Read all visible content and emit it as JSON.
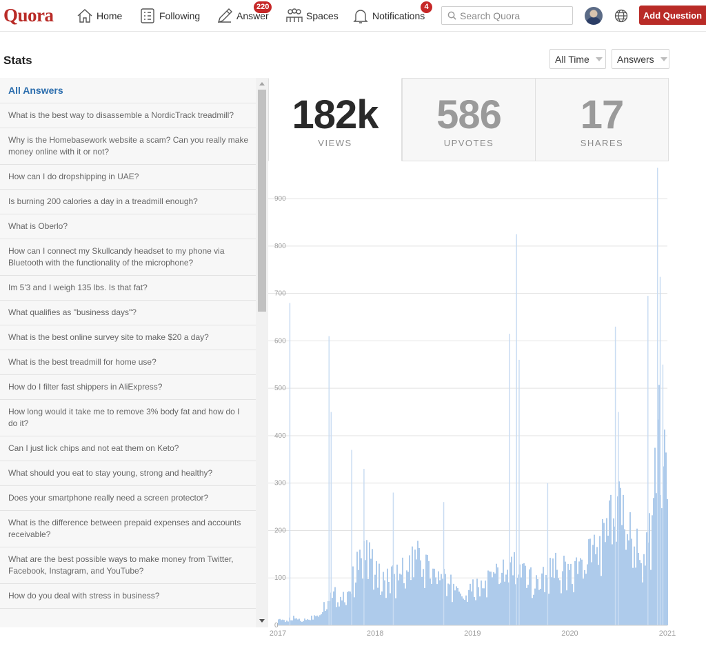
{
  "nav": {
    "logo": "Quora",
    "home": "Home",
    "following": "Following",
    "answer": "Answer",
    "answer_badge": "220",
    "spaces": "Spaces",
    "notifications": "Notifications",
    "notifications_badge": "4",
    "search_placeholder": "Search Quora",
    "add_question": "Add Question"
  },
  "page": {
    "title": "Stats",
    "time_filter": "All Time",
    "type_filter": "Answers"
  },
  "answers": {
    "header": "All Answers",
    "items": [
      "What is the best way to disassemble a NordicTrack treadmill?",
      "Why is the Homebasework website a scam? Can you really make money online with it or not?",
      "How can I do dropshipping in UAE?",
      "Is burning 200 calories a day in a treadmill enough?",
      "What is Oberlo?",
      "How can I connect my Skullcandy headset to my phone via Bluetooth with the functionality of the microphone?",
      "Im 5'3 and I weigh 135 lbs. Is that fat?",
      "What qualifies as \"business days\"?",
      "What is the best online survey site to make $20 a day?",
      "What is the best treadmill for home use?",
      "How do I filter fast shippers in AliExpress?",
      "How long would it take me to remove 3% body fat and how do I do it?",
      "Can I just lick chips and not eat them on Keto?",
      "What should you eat to stay young, strong and healthy?",
      "Does your smartphone really need a screen protector?",
      "What is the difference between prepaid expenses and accounts receivable?",
      "What are the best possible ways to make money from Twitter, Facebook, Instagram, and YouTube?",
      "How do you deal with stress in business?"
    ]
  },
  "stats": {
    "views": {
      "value": "182k",
      "label": "VIEWS"
    },
    "upvotes": {
      "value": "586",
      "label": "UPVOTES"
    },
    "shares": {
      "value": "17",
      "label": "SHARES"
    }
  },
  "colors": {
    "brand": "#b92b27",
    "link": "#2b6dad",
    "bar_fill": "#aecbeb",
    "spike": "#c9dcf2"
  },
  "chart_data": {
    "type": "area",
    "title": "",
    "xlabel": "",
    "ylabel": "",
    "x_ticks": [
      "2017",
      "2018",
      "2019",
      "2020",
      "2021"
    ],
    "y_ticks": [
      0,
      100,
      200,
      300,
      400,
      500,
      600,
      700,
      800,
      900
    ],
    "xlim": [
      "2017-01-01",
      "2021-01-01"
    ],
    "ylim": [
      0,
      970
    ],
    "grid": true,
    "series": [
      {
        "values_by_date": [
          [
            "2017-01-01",
            10
          ],
          [
            "2017-02-01",
            10
          ],
          [
            "2017-03-01",
            15
          ],
          [
            "2017-04-01",
            10
          ],
          [
            "2017-05-01",
            15
          ],
          [
            "2017-06-01",
            25
          ],
          [
            "2017-07-01",
            50
          ],
          [
            "2017-08-01",
            60
          ],
          [
            "2017-09-01",
            60
          ],
          [
            "2017-10-01",
            80
          ],
          [
            "2017-11-01",
            130
          ],
          [
            "2017-12-01",
            150
          ],
          [
            "2018-01-01",
            100
          ],
          [
            "2018-02-01",
            95
          ],
          [
            "2018-03-01",
            90
          ],
          [
            "2018-04-01",
            100
          ],
          [
            "2018-05-01",
            110
          ],
          [
            "2018-06-01",
            130
          ],
          [
            "2018-07-01",
            120
          ],
          [
            "2018-08-01",
            110
          ],
          [
            "2018-09-01",
            90
          ],
          [
            "2018-10-01",
            80
          ],
          [
            "2018-11-01",
            80
          ],
          [
            "2018-12-01",
            60
          ],
          [
            "2019-01-01",
            70
          ],
          [
            "2019-02-01",
            80
          ],
          [
            "2019-03-01",
            90
          ],
          [
            "2019-04-01",
            100
          ],
          [
            "2019-05-01",
            110
          ],
          [
            "2019-06-01",
            120
          ],
          [
            "2019-07-01",
            100
          ],
          [
            "2019-08-01",
            90
          ],
          [
            "2019-09-01",
            95
          ],
          [
            "2019-10-01",
            100
          ],
          [
            "2019-11-01",
            120
          ],
          [
            "2019-12-01",
            105
          ],
          [
            "2020-01-01",
            110
          ],
          [
            "2020-02-01",
            115
          ],
          [
            "2020-03-01",
            130
          ],
          [
            "2020-04-01",
            150
          ],
          [
            "2020-05-01",
            170
          ],
          [
            "2020-06-01",
            200
          ],
          [
            "2020-07-01",
            220
          ],
          [
            "2020-08-01",
            200
          ],
          [
            "2020-09-01",
            190
          ],
          [
            "2020-10-01",
            130
          ],
          [
            "2020-11-01",
            200
          ],
          [
            "2020-12-01",
            380
          ]
        ],
        "peaks": [
          [
            "2017-02-15",
            680
          ],
          [
            "2017-07-12",
            610
          ],
          [
            "2017-07-20",
            450
          ],
          [
            "2017-10-05",
            370
          ],
          [
            "2017-11-20",
            330
          ],
          [
            "2018-03-10",
            280
          ],
          [
            "2018-09-15",
            260
          ],
          [
            "2019-05-20",
            615
          ],
          [
            "2019-06-15",
            825
          ],
          [
            "2019-06-25",
            560
          ],
          [
            "2019-10-10",
            300
          ],
          [
            "2020-06-20",
            630
          ],
          [
            "2020-07-01",
            450
          ],
          [
            "2020-10-20",
            695
          ],
          [
            "2020-11-25",
            965
          ],
          [
            "2020-12-05",
            735
          ],
          [
            "2020-12-15",
            550
          ]
        ]
      }
    ]
  }
}
